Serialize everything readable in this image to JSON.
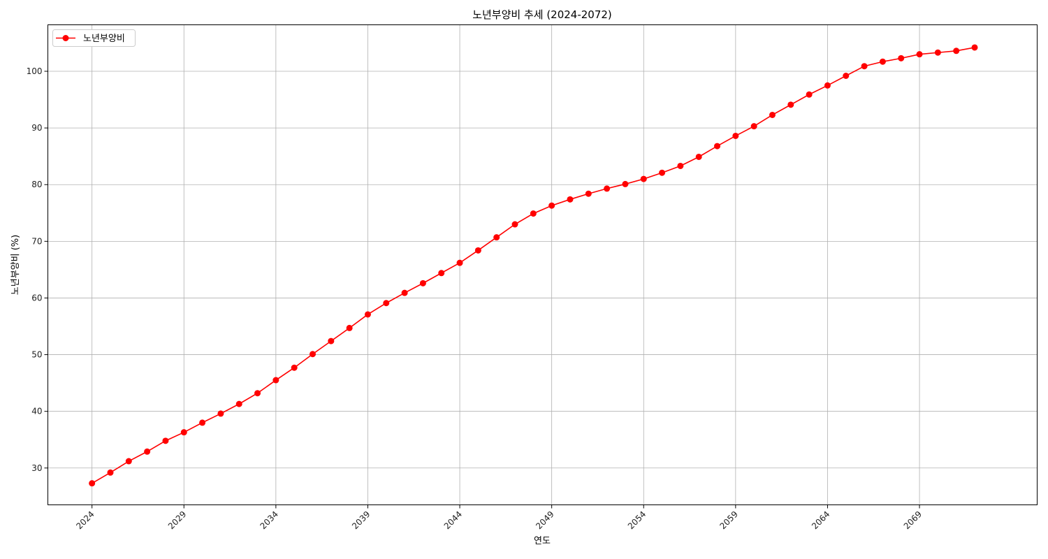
{
  "chart_data": {
    "type": "line",
    "title": "노년부양비 추세 (2024-2072)",
    "xlabel": "연도",
    "ylabel": "노년부양비 (%)",
    "xlim": [
      2021.6,
      2075.4
    ],
    "ylim": [
      23.5,
      108.2
    ],
    "xticks": [
      2024,
      2029,
      2034,
      2039,
      2044,
      2049,
      2054,
      2059,
      2064,
      2069
    ],
    "yticks": [
      30,
      40,
      50,
      60,
      70,
      80,
      90,
      100
    ],
    "grid": true,
    "legend_position": "top-left",
    "series": [
      {
        "name": "노년부양비",
        "color": "#ff0000",
        "marker": "circle",
        "x": [
          2024,
          2025,
          2026,
          2027,
          2028,
          2029,
          2030,
          2031,
          2032,
          2033,
          2034,
          2035,
          2036,
          2037,
          2038,
          2039,
          2040,
          2041,
          2042,
          2043,
          2044,
          2045,
          2046,
          2047,
          2048,
          2049,
          2050,
          2051,
          2052,
          2053,
          2054,
          2055,
          2056,
          2057,
          2058,
          2059,
          2060,
          2061,
          2062,
          2063,
          2064,
          2065,
          2066,
          2067,
          2068,
          2069,
          2070,
          2071,
          2072
        ],
        "y": [
          27.3,
          29.2,
          31.2,
          32.9,
          34.8,
          36.3,
          38.0,
          39.6,
          41.3,
          43.2,
          45.5,
          47.7,
          50.1,
          52.4,
          54.7,
          57.1,
          59.1,
          60.9,
          62.6,
          64.4,
          66.2,
          68.4,
          70.7,
          73.0,
          74.9,
          76.3,
          77.4,
          78.4,
          79.3,
          80.1,
          81.0,
          82.1,
          83.3,
          84.9,
          86.8,
          88.6,
          90.3,
          92.3,
          94.1,
          95.9,
          97.5,
          99.2,
          100.9,
          101.7,
          102.3,
          103.0,
          103.3,
          103.6,
          104.2
        ]
      }
    ]
  }
}
